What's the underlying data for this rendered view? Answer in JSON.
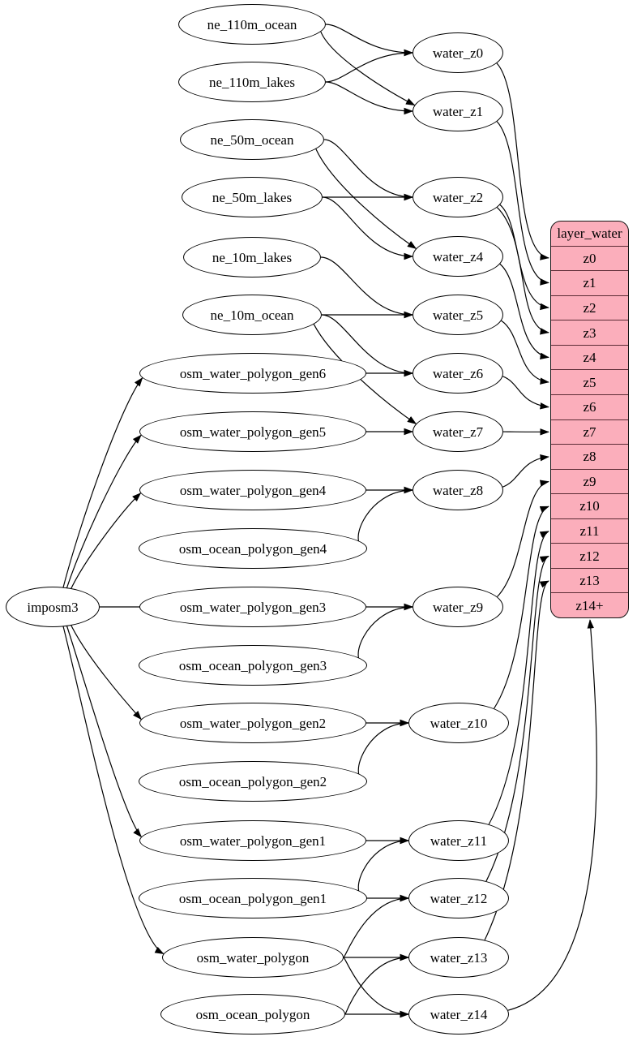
{
  "diagram": {
    "nodes": [
      {
        "id": "imposm3",
        "label": "imposm3"
      },
      {
        "id": "ne_110m_ocean",
        "label": "ne_110m_ocean"
      },
      {
        "id": "ne_110m_lakes",
        "label": "ne_110m_lakes"
      },
      {
        "id": "ne_50m_ocean",
        "label": "ne_50m_ocean"
      },
      {
        "id": "ne_50m_lakes",
        "label": "ne_50m_lakes"
      },
      {
        "id": "ne_10m_lakes",
        "label": "ne_10m_lakes"
      },
      {
        "id": "ne_10m_ocean",
        "label": "ne_10m_ocean"
      },
      {
        "id": "osm_water_polygon_gen6",
        "label": "osm_water_polygon_gen6"
      },
      {
        "id": "osm_water_polygon_gen5",
        "label": "osm_water_polygon_gen5"
      },
      {
        "id": "osm_water_polygon_gen4",
        "label": "osm_water_polygon_gen4"
      },
      {
        "id": "osm_ocean_polygon_gen4",
        "label": "osm_ocean_polygon_gen4"
      },
      {
        "id": "osm_water_polygon_gen3",
        "label": "osm_water_polygon_gen3"
      },
      {
        "id": "osm_ocean_polygon_gen3",
        "label": "osm_ocean_polygon_gen3"
      },
      {
        "id": "osm_water_polygon_gen2",
        "label": "osm_water_polygon_gen2"
      },
      {
        "id": "osm_ocean_polygon_gen2",
        "label": "osm_ocean_polygon_gen2"
      },
      {
        "id": "osm_water_polygon_gen1",
        "label": "osm_water_polygon_gen1"
      },
      {
        "id": "osm_ocean_polygon_gen1",
        "label": "osm_ocean_polygon_gen1"
      },
      {
        "id": "osm_water_polygon",
        "label": "osm_water_polygon"
      },
      {
        "id": "osm_ocean_polygon",
        "label": "osm_ocean_polygon"
      },
      {
        "id": "water_z0",
        "label": "water_z0"
      },
      {
        "id": "water_z1",
        "label": "water_z1"
      },
      {
        "id": "water_z2",
        "label": "water_z2"
      },
      {
        "id": "water_z4",
        "label": "water_z4"
      },
      {
        "id": "water_z5",
        "label": "water_z5"
      },
      {
        "id": "water_z6",
        "label": "water_z6"
      },
      {
        "id": "water_z7",
        "label": "water_z7"
      },
      {
        "id": "water_z8",
        "label": "water_z8"
      },
      {
        "id": "water_z9",
        "label": "water_z9"
      },
      {
        "id": "water_z10",
        "label": "water_z10"
      },
      {
        "id": "water_z11",
        "label": "water_z11"
      },
      {
        "id": "water_z12",
        "label": "water_z12"
      },
      {
        "id": "water_z13",
        "label": "water_z13"
      },
      {
        "id": "water_z14",
        "label": "water_z14"
      }
    ],
    "record": {
      "title": "layer_water",
      "rows": [
        "z0",
        "z1",
        "z2",
        "z3",
        "z4",
        "z5",
        "z6",
        "z7",
        "z8",
        "z9",
        "z10",
        "z11",
        "z12",
        "z13",
        "z14+"
      ]
    },
    "edges": [
      {
        "from": "imposm3",
        "to": "osm_water_polygon_gen6"
      },
      {
        "from": "imposm3",
        "to": "osm_water_polygon_gen5"
      },
      {
        "from": "imposm3",
        "to": "osm_water_polygon_gen4"
      },
      {
        "from": "imposm3",
        "to": "osm_water_polygon_gen3"
      },
      {
        "from": "imposm3",
        "to": "osm_water_polygon_gen2"
      },
      {
        "from": "imposm3",
        "to": "osm_water_polygon_gen1"
      },
      {
        "from": "imposm3",
        "to": "osm_water_polygon"
      },
      {
        "from": "ne_110m_ocean",
        "to": "water_z0"
      },
      {
        "from": "ne_110m_ocean",
        "to": "water_z1"
      },
      {
        "from": "ne_110m_lakes",
        "to": "water_z0"
      },
      {
        "from": "ne_110m_lakes",
        "to": "water_z1"
      },
      {
        "from": "ne_50m_ocean",
        "to": "water_z2"
      },
      {
        "from": "ne_50m_ocean",
        "to": "water_z4"
      },
      {
        "from": "ne_50m_lakes",
        "to": "water_z2"
      },
      {
        "from": "ne_50m_lakes",
        "to": "water_z4"
      },
      {
        "from": "ne_10m_lakes",
        "to": "water_z5"
      },
      {
        "from": "ne_10m_ocean",
        "to": "water_z5"
      },
      {
        "from": "ne_10m_ocean",
        "to": "water_z6"
      },
      {
        "from": "ne_10m_ocean",
        "to": "water_z7"
      },
      {
        "from": "osm_water_polygon_gen6",
        "to": "water_z6"
      },
      {
        "from": "osm_water_polygon_gen5",
        "to": "water_z7"
      },
      {
        "from": "osm_water_polygon_gen4",
        "to": "water_z8"
      },
      {
        "from": "osm_ocean_polygon_gen4",
        "to": "water_z8"
      },
      {
        "from": "osm_water_polygon_gen3",
        "to": "water_z9"
      },
      {
        "from": "osm_ocean_polygon_gen3",
        "to": "water_z9"
      },
      {
        "from": "osm_water_polygon_gen2",
        "to": "water_z10"
      },
      {
        "from": "osm_ocean_polygon_gen2",
        "to": "water_z10"
      },
      {
        "from": "osm_water_polygon_gen1",
        "to": "water_z11"
      },
      {
        "from": "osm_ocean_polygon_gen1",
        "to": "water_z11"
      },
      {
        "from": "osm_ocean_polygon_gen1",
        "to": "water_z12"
      },
      {
        "from": "osm_water_polygon",
        "to": "water_z12"
      },
      {
        "from": "osm_water_polygon",
        "to": "water_z13"
      },
      {
        "from": "osm_water_polygon",
        "to": "water_z14"
      },
      {
        "from": "osm_ocean_polygon",
        "to": "water_z13"
      },
      {
        "from": "osm_ocean_polygon",
        "to": "water_z14"
      },
      {
        "from": "water_z0",
        "to": "row:z0"
      },
      {
        "from": "water_z1",
        "to": "row:z1"
      },
      {
        "from": "water_z2",
        "to": "row:z2"
      },
      {
        "from": "water_z2",
        "to": "row:z3"
      },
      {
        "from": "water_z4",
        "to": "row:z4"
      },
      {
        "from": "water_z5",
        "to": "row:z5"
      },
      {
        "from": "water_z6",
        "to": "row:z6"
      },
      {
        "from": "water_z7",
        "to": "row:z7"
      },
      {
        "from": "water_z8",
        "to": "row:z8"
      },
      {
        "from": "water_z9",
        "to": "row:z9"
      },
      {
        "from": "water_z10",
        "to": "row:z10"
      },
      {
        "from": "water_z11",
        "to": "row:z11"
      },
      {
        "from": "water_z12",
        "to": "row:z12"
      },
      {
        "from": "water_z13",
        "to": "row:z13"
      },
      {
        "from": "water_z14",
        "to": "row:z14+"
      }
    ],
    "colors": {
      "record_fill": "#fbaebb",
      "record_border": "#141414",
      "record_separator": "#5b2c35",
      "node_fill": "#ffffff",
      "node_border": "#000000",
      "edge": "#000000",
      "background": "#ffffff"
    }
  }
}
